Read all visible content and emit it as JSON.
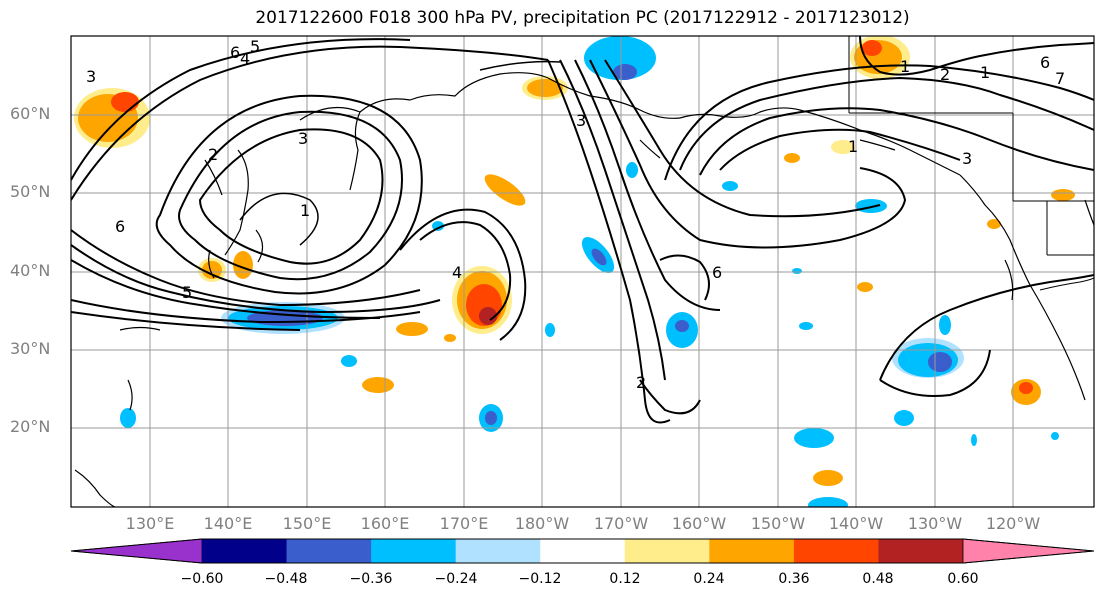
{
  "title": "2017122600 F018 300 hPa PV, precipitation PC (2017122912 - 2017123012)",
  "lat_labels": [
    "60°N",
    "50°N",
    "40°N",
    "30°N",
    "20°N"
  ],
  "lon_labels": [
    "130°E",
    "140°E",
    "150°E",
    "160°E",
    "170°E",
    "180°W",
    "170°W",
    "160°W",
    "150°W",
    "140°W",
    "130°W",
    "120°W"
  ],
  "colorbar": {
    "ticks": [
      "−0.60",
      "−0.48",
      "−0.36",
      "−0.24",
      "−0.12",
      "0.12",
      "0.24",
      "0.36",
      "0.48",
      "0.60"
    ],
    "colors": [
      "#9932cc",
      "#00008b",
      "#3a5fcd",
      "#00bfff",
      "#b0e2ff",
      "#ffffff",
      "#ffec8b",
      "#ffa500",
      "#ff4500",
      "#b22222",
      "#ff82ab"
    ]
  },
  "contour_labels": [
    "3",
    "6",
    "5",
    "4",
    "3",
    "1",
    "2",
    "5",
    "4",
    "6",
    "2",
    "1",
    "2",
    "6",
    "7",
    "1",
    "3",
    "6",
    "3",
    "1"
  ],
  "colors": {
    "grid": "#9a9a9a",
    "contour": "#000000",
    "coast": "#000000"
  }
}
